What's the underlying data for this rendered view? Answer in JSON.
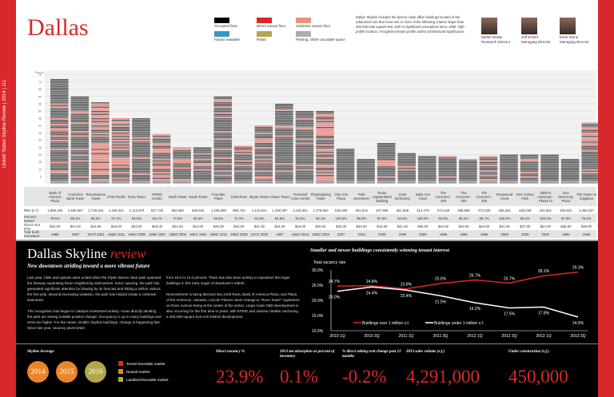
{
  "sidebar_text": "United States Skyline Review | 2014 | JLL",
  "title": "Dallas",
  "legend": [
    {
      "label": "Occupied floor",
      "color": "#000000"
    },
    {
      "label": "Direct vacant floor",
      "color": "#d9282b"
    },
    {
      "label": "Sublease vacant floor",
      "color": "#e8937a"
    },
    {
      "label": "Future available",
      "color": "#3a96c0"
    },
    {
      "label": "Retail",
      "color": "#b0a84a"
    },
    {
      "label": "Parking, Other unusable space",
      "color": "#a8adb2"
    }
  ],
  "intro": "Dallas' Skyline includes the best-in-class office buildings located in the urbanized core that meet one or more of the following criteria: larger than 250,000 total square feet, built or significant renovations since 1980, high-profile location, recognized tenant profile and/or architectural significance.",
  "people": [
    {
      "name": "Walter Bialas",
      "role": "Research Director"
    },
    {
      "name": "Jeff Eckert",
      "role": "Managing Director"
    },
    {
      "name": "Evan Stone",
      "role": "Managing Director"
    }
  ],
  "skyline": {
    "axis_label": "Floor #",
    "ticks": [
      5,
      10,
      15,
      20,
      25,
      30,
      35,
      40,
      45,
      50,
      55,
      60,
      65,
      70,
      75
    ],
    "group_label": "Plaza of the Americas",
    "row_labels": [
      "RBA (s.f.)",
      "Percent leased",
      "Direct rent (FS)",
      "Year built/ renovated"
    ],
    "buildings": [
      {
        "name": "Bank of America Plaza",
        "floors": 72,
        "rba": "1,885,185",
        "leased": "78.6%",
        "rent": "$23.00",
        "year": "1985"
      },
      {
        "name": "Comerica Bank Tower",
        "floors": 60,
        "rba": "1,530,957",
        "leased": "85.4%",
        "rent": "$22.00",
        "year": "1987"
      },
      {
        "name": "Renaissance Tower",
        "floors": 56,
        "rba": "1,729,264",
        "leased": "58.3%",
        "rent": "$15.80",
        "year": "1974/ 2001"
      },
      {
        "name": "1700 Pacific",
        "floors": 45,
        "rba": "1,349,451",
        "leased": "57.2%",
        "rent": "$18.00",
        "year": "1965/ 2011"
      },
      {
        "name": "Ross Tower",
        "floors": 45,
        "rba": "1,113,575",
        "leased": "84.8%",
        "rent": "$23.00",
        "year": "1984/ 2008"
      },
      {
        "name": "KPMG Centre",
        "floors": 34,
        "rba": "827,704",
        "leased": "83.1%",
        "rent": "$19.00",
        "year": "1980/ 1997"
      },
      {
        "name": "North Tower",
        "floors": 25,
        "rba": "582,580",
        "leased": "77.6%",
        "rent": "$21.00",
        "year": "1980/ 2008"
      },
      {
        "name": "South Tower",
        "floors": 25,
        "rba": "538,944",
        "leased": "83.6%",
        "rent": "$21.00",
        "year": "1981/ 1992"
      },
      {
        "name": "Fountain Place",
        "floors": 60,
        "rba": "1,208,298",
        "leased": "85.5%",
        "rent": "$25.00",
        "year": "1986/ 2010"
      },
      {
        "name": "2100 Ross",
        "floors": 26,
        "rba": "865,703",
        "leased": "72.3%",
        "rent": "$24.00",
        "year": "1982/ 2008"
      },
      {
        "name": "Bryan Tower",
        "floors": 40,
        "rba": "1,124,021",
        "leased": "61.8%",
        "rent": "$21.00",
        "year": "1973/ 2000"
      },
      {
        "name": "Chase Tower",
        "floors": 55,
        "rba": "1,290,487",
        "leased": "84.9%",
        "rent": "$24.00",
        "year": "1987"
      },
      {
        "name": "Trammell Crow Center",
        "floors": 50,
        "rba": "1,126,381",
        "leased": "81.8%",
        "rent": "$23.00",
        "year": "1984/ 2013"
      },
      {
        "name": "Thanksgiving Tower",
        "floors": 50,
        "rba": "1,375,653",
        "leased": "58.1%",
        "rent": "$25.00",
        "year": "1982/ 2008"
      },
      {
        "name": "One Arts Plaza",
        "floors": 24,
        "rba": "536,208",
        "leased": "100.0%",
        "rent": "$33.00",
        "year": "2007"
      },
      {
        "name": "Park Seventeen",
        "floors": 17,
        "rba": "361,524",
        "leased": "96.8%",
        "rent": "$40.00",
        "year": "2010"
      },
      {
        "name": "Texas Capital Bank Building",
        "floors": 28,
        "rba": "447,585",
        "leased": "87.5%",
        "rent": "$41.00",
        "year": "2008"
      },
      {
        "name": "2100 McKinney",
        "floors": 21,
        "rba": "351,858",
        "leased": "84.9%",
        "rent": "$41.00",
        "year": "1999"
      },
      {
        "name": "Saint Ann Court",
        "floors": 19,
        "rba": "314,279",
        "leased": "100.0%",
        "rent": "$35.00",
        "year": "2009"
      },
      {
        "name": "The Crescent - 100",
        "floors": 19,
        "rba": "372,269",
        "leased": "93.8%",
        "rent": "$43.00",
        "year": "1985"
      },
      {
        "name": "The Crescent - 200",
        "floors": 17,
        "rba": "358,505",
        "leased": "90.2%",
        "rent": "$43.00",
        "year": "1985"
      },
      {
        "name": "The Crescent - 300",
        "floors": 19,
        "rba": "372,260",
        "leased": "85.7%",
        "rent": "$43.00",
        "year": "1985"
      },
      {
        "name": "Rosewood Court",
        "floors": 20,
        "rba": "465,261",
        "leased": "100.0%",
        "rent": "$41.00",
        "year": "2008"
      },
      {
        "name": "One Victory Park",
        "floors": 20,
        "rba": "436,048",
        "leased": "93.4%",
        "rent": "$37.50",
        "year": "2008"
      },
      {
        "name": "2828 N Harwood - Phase III",
        "floors": 20,
        "rba": "220,681",
        "leased": "100.0%",
        "rent": "$24.00",
        "year": "2000"
      },
      {
        "name": "One McKinney Plaza",
        "floors": 17,
        "rba": "293,821",
        "leased": "97.5%",
        "rent": "$36.50",
        "year": "1985"
      },
      {
        "name": "The Tower at Cityplace",
        "floors": 42,
        "rba": "1,350,247",
        "leased": "75.4%",
        "rent": "$30.00",
        "year": "1988"
      }
    ]
  },
  "review": {
    "title": "Dallas Skyline ",
    "title_em": "review",
    "subtitle": "New downtown striding toward a more vibrant future",
    "p1": "Last year, CBD and Uptown were united when the Klyde Warren deck park spanned the freeway separating these neighboring submarkets. Since opening, the park has generated significant attention by blowing by its forecast and hitting a million visitors the first year. Beyond increasing visitation, the park has helped create a cohesive downtown.",
    "p2": "This recognition has begun to catalyze investment activity. Areas directly abutting the park are seeing notable positive change. Occupancy is up in many buildings and rents are higher. For the newer, smaller Skyline buildings, change is happening fast. Since last year, vacancy plummeted",
    "p3": "from 18.0 to 12.0 percent. There has also been activity to reposition the larger buildings in this early stage of downtown's rebirth.",
    "p4": "Reinvestment is being directed into 2100 Ross, Bank of America Plaza, and Plaza of the Americas. Likewise, Lincoln Plaza's name change to \"Ross Tower\" capitalizes on Ross Avenue being at the center of the action. Large-scale CBD development is also occurring for the first time in years, with KPMG and Jackson Walker anchoring a 450,000-square-foot Arts District development."
  },
  "chart_data": {
    "type": "line",
    "title": "Smaller and newer buildings consistently winning tenant interest",
    "ylabel": "Total vacancy rate",
    "categories": [
      "2010 1Q",
      "2010 3Q",
      "2011 1Q",
      "2011 3Q",
      "2012 1Q",
      "2012 3Q",
      "2013 1Q",
      "2013 3Q"
    ],
    "yticks": [
      "10.0%",
      "15.0%",
      "20.0%",
      "25.0%",
      "30.0%"
    ],
    "ylim": [
      10,
      30
    ],
    "series": [
      {
        "name": "Buildings over 1 million s.f.",
        "color": "#d9282b",
        "values": [
          24.7,
          24.8,
          23.8,
          25.6,
          26.7,
          25.7,
          28.1,
          29.3
        ]
      },
      {
        "name": "Buildings under 1 million s.f.",
        "color": "#ffffff",
        "values": [
          23.0,
          24.4,
          23.4,
          21.5,
          19.2,
          17.5,
          17.8,
          14.5
        ]
      }
    ]
  },
  "leverage": {
    "label": "Skyline leverage",
    "years": [
      {
        "year": "2014",
        "color": "#e8862a"
      },
      {
        "year": "2015",
        "color": "#e8862a"
      },
      {
        "year": "2016",
        "color": "#b0a84a"
      }
    ],
    "legend": [
      {
        "label": "Tenant-favorable market",
        "color": "#d9282b"
      },
      {
        "label": "Neutral market",
        "color": "#e8862a"
      },
      {
        "label": "Landlord-favorable market",
        "color": "#b0a84a"
      }
    ]
  },
  "stats": [
    {
      "label": "Direct vacancy %",
      "value": "23.9%"
    },
    {
      "label": "2013 net absorption as percent of inventory",
      "value": "0.1%"
    },
    {
      "label": "% direct asking rent change past 12 months",
      "value": "-0.2%"
    },
    {
      "label": "2013 sales volume (s.f.)",
      "value": "4,291,000"
    },
    {
      "label": "Under construction (s.f.)",
      "value": "450,000"
    }
  ]
}
